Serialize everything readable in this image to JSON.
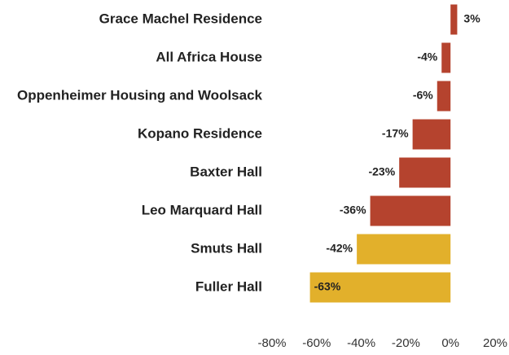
{
  "chart_data": {
    "type": "barh",
    "categories": [
      "Grace Machel Residence",
      "All Africa House",
      "Oppenheimer Housing and Woolsack",
      "Kopano Residence",
      "Baxter Hall",
      "Leo Marquard Hall",
      "Smuts Hall",
      "Fuller Hall"
    ],
    "values": [
      3,
      -4,
      -6,
      -17,
      -23,
      -36,
      -42,
      -63
    ],
    "value_labels": [
      "3%",
      "-4%",
      "-6%",
      "-17%",
      "-23%",
      "-36%",
      "-42%",
      "-63%"
    ],
    "colors": [
      "#b5432e",
      "#b5432e",
      "#b5432e",
      "#b5432e",
      "#b5432e",
      "#b5432e",
      "#e2b02b",
      "#e2b02b"
    ],
    "xlim": [
      -80,
      20
    ],
    "xticks": [
      {
        "value": -80,
        "label": "-80%"
      },
      {
        "value": -60,
        "label": "-60%"
      },
      {
        "value": -40,
        "label": "-40%"
      },
      {
        "value": -20,
        "label": "-20%"
      },
      {
        "value": 0,
        "label": "0%"
      },
      {
        "value": 20,
        "label": "20%"
      }
    ],
    "grid": false
  }
}
